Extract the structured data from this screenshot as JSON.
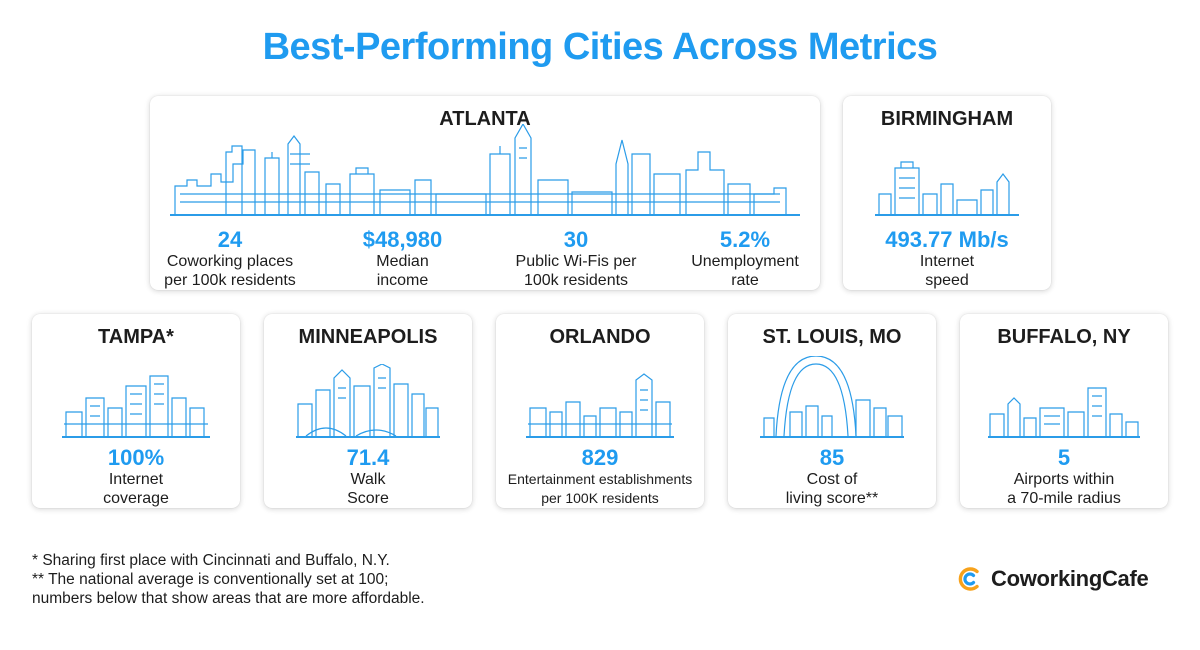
{
  "title": "Best-Performing Cities Across Metrics",
  "colors": {
    "accent": "#1f9bf0",
    "text": "#1d1d1d",
    "logo_ring": "#f7a21b"
  },
  "cards": {
    "atlanta": {
      "city": "ATLANTA",
      "metrics": [
        {
          "value": "24",
          "label1": "Coworking places",
          "label2": "per 100k residents"
        },
        {
          "value": "$48,980",
          "label1": "Median",
          "label2": "income"
        },
        {
          "value": "30",
          "label1": "Public Wi-Fis per",
          "label2": "100k residents"
        },
        {
          "value": "5.2%",
          "label1": "Unemployment",
          "label2": "rate"
        }
      ]
    },
    "birmingham": {
      "city": "BIRMINGHAM",
      "value": "493.77 Mb/s",
      "label1": "Internet",
      "label2": "speed"
    },
    "tampa": {
      "city": "TAMPA*",
      "value": "100%",
      "label1": "Internet",
      "label2": "coverage"
    },
    "minneapolis": {
      "city": "MINNEAPOLIS",
      "value": "71.4",
      "label1": "Walk",
      "label2": "Score"
    },
    "orlando": {
      "city": "ORLANDO",
      "value": "829",
      "label1": "Entertainment establishments",
      "label2": "per 100K residents"
    },
    "stlouis": {
      "city": "ST. LOUIS, MO",
      "value": "85",
      "label1": "Cost of",
      "label2": "living score**"
    },
    "buffalo": {
      "city": "BUFFALO, NY",
      "value": "5",
      "label1": "Airports within",
      "label2": "a 70-mile radius"
    }
  },
  "footnotes": [
    "* Sharing first place with Cincinnati and Buffalo, N.Y.",
    "** The national average is conventionally set at 100;",
    "numbers below that show areas that are more affordable."
  ],
  "brand": {
    "name": "CoworkingCafe",
    "icon": "coworkingcafe-logo-icon"
  }
}
